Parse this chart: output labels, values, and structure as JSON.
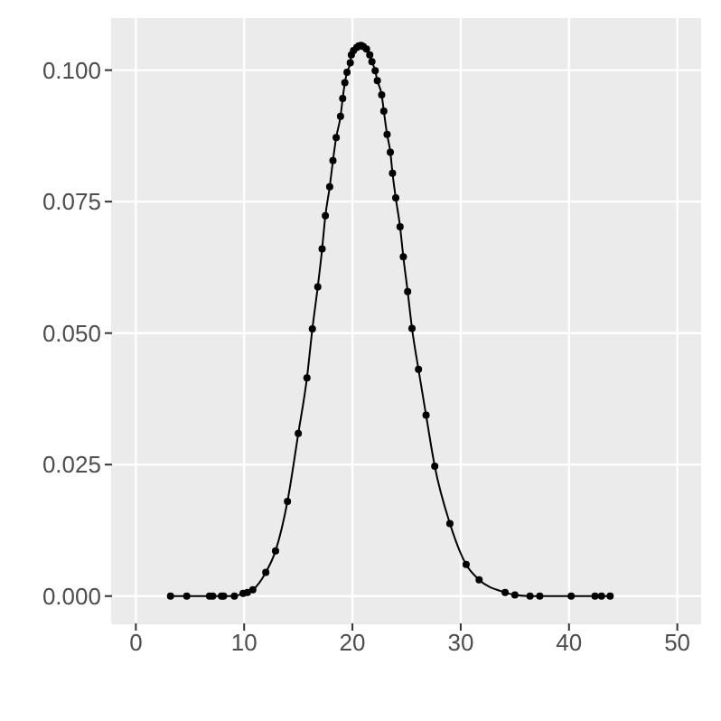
{
  "chart_data": {
    "type": "line",
    "marker": "circle",
    "line_style": "solid",
    "grid": true,
    "xlim": [
      -2.2,
      52.2
    ],
    "xticks": [
      0,
      10,
      20,
      30,
      40,
      50
    ],
    "ylim": [
      -0.0052,
      0.1099
    ],
    "yticks": [
      {
        "value": 0,
        "label": "0.000"
      },
      {
        "value": 0.025,
        "label": "0.025"
      },
      {
        "value": 0.05,
        "label": "0.050"
      },
      {
        "value": 0.075,
        "label": "0.075"
      },
      {
        "value": 0.1,
        "label": "0.100"
      }
    ],
    "x": [
      3.2,
      4.7,
      6.8,
      7.1,
      7.9,
      8.1,
      9.1,
      9.9,
      10.3,
      10.8,
      12.0,
      12.9,
      14.0,
      15.0,
      15.8,
      16.3,
      16.8,
      17.2,
      17.5,
      17.9,
      18.2,
      18.5,
      18.9,
      19.1,
      19.3,
      19.5,
      19.8,
      19.9,
      20.1,
      20.4,
      20.6,
      20.8,
      21.0,
      21.3,
      21.6,
      21.8,
      22.1,
      22.3,
      22.7,
      22.9,
      23.2,
      23.5,
      23.7,
      24.0,
      24.4,
      24.7,
      25.1,
      25.5,
      26.1,
      26.8,
      27.6,
      29.0,
      30.5,
      31.7,
      34.1,
      35.0,
      36.4,
      37.3,
      40.2,
      42.4,
      43.0,
      43.8
    ],
    "series": [
      {
        "color": "#000000",
        "values": [
          0,
          0,
          0,
          0,
          0,
          0,
          0,
          0.0005,
          0.0007,
          0.0012,
          0.0045,
          0.0086,
          0.018,
          0.0309,
          0.0415,
          0.0508,
          0.0588,
          0.066,
          0.0723,
          0.0778,
          0.0828,
          0.0872,
          0.0912,
          0.0946,
          0.0976,
          0.0996,
          0.1014,
          0.1029,
          0.1037,
          0.1043,
          0.1046,
          0.1047,
          0.1045,
          0.104,
          0.1029,
          0.1016,
          0.0999,
          0.098,
          0.0953,
          0.0922,
          0.0878,
          0.0844,
          0.0804,
          0.0757,
          0.0702,
          0.0645,
          0.0579,
          0.0509,
          0.0431,
          0.0344,
          0.0247,
          0.0138,
          0.006,
          0.0031,
          0.0007,
          0.0002,
          0,
          0,
          0,
          0,
          0,
          0
        ]
      }
    ]
  }
}
